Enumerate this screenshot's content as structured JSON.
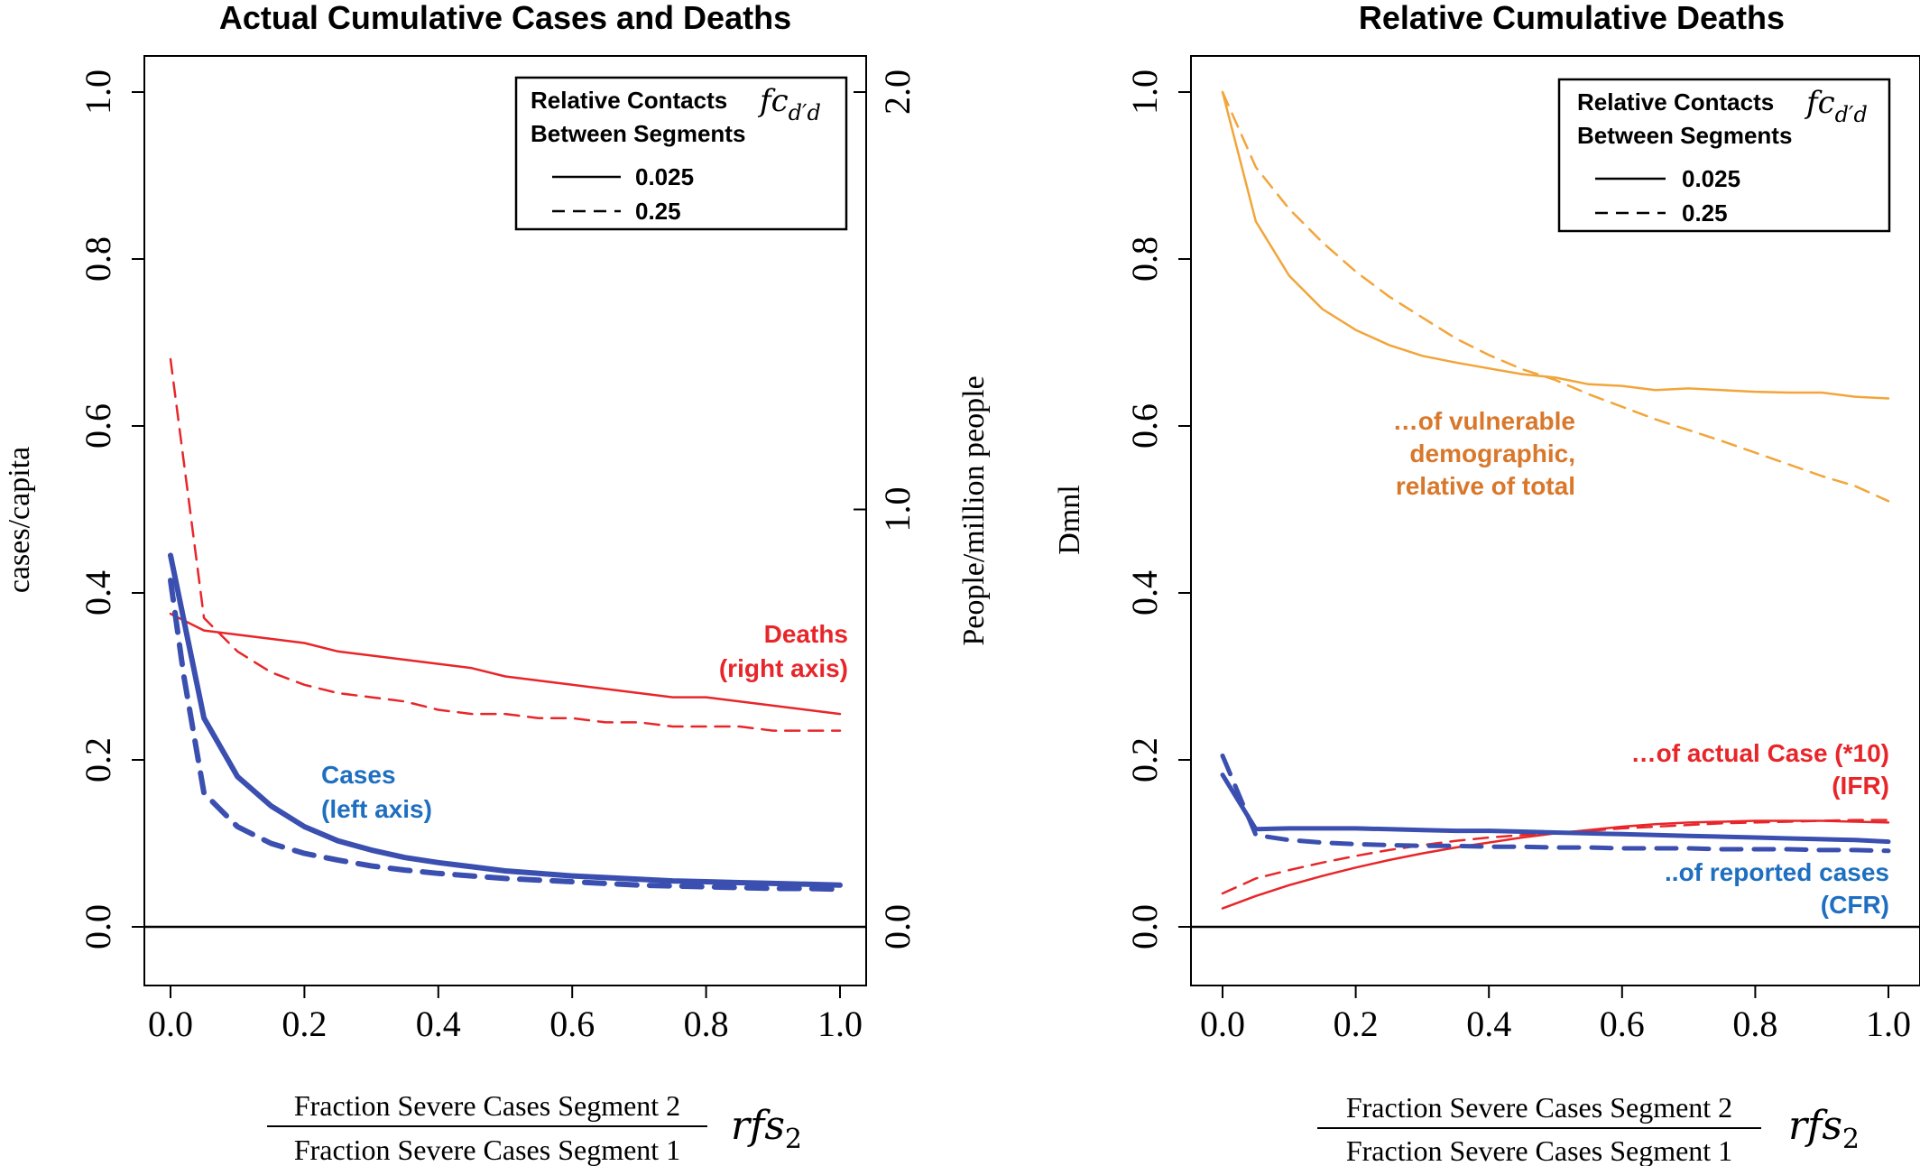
{
  "chart_data": [
    {
      "type": "line",
      "title": "Actual Cumulative Cases and Deaths",
      "ylabel": "cases/capita",
      "y2label": "People/million people",
      "xlabel_numerator": "Fraction Severe Cases Segment 2",
      "xlabel_denominator": "Fraction Severe Cases Segment 1",
      "xlabel_symbol": "rfs",
      "xlabel_symbol_sub": "2",
      "xlim": [
        0,
        1
      ],
      "ylim": [
        0,
        1
      ],
      "y2lim": [
        0,
        2
      ],
      "xticks": [
        "0.0",
        "0.2",
        "0.4",
        "0.6",
        "0.8",
        "1.0"
      ],
      "yticks": [
        "0.0",
        "0.2",
        "0.4",
        "0.6",
        "0.8",
        "1.0"
      ],
      "y2ticks": [
        "0.0",
        "1.0",
        "2.0"
      ],
      "legend": {
        "position": "top-right",
        "title_line1": "Relative Contacts",
        "title_line2": "Between Segments",
        "symbol": "fc",
        "symbol_sub": "d′d",
        "entries": [
          {
            "label": "0.025",
            "style": "solid"
          },
          {
            "label": "0.25",
            "style": "dashed"
          }
        ]
      },
      "annotations": [
        {
          "lines": [
            "Deaths",
            "(right axis)"
          ],
          "color": "#e8262a"
        },
        {
          "lines": [
            "Cases",
            "(left axis)"
          ],
          "color": "#1f6fc0"
        }
      ],
      "series": [
        {
          "group": "Deaths",
          "axis": "right",
          "style": "solid",
          "color": "#e8262a",
          "x": [
            0,
            0.05,
            0.1,
            0.15,
            0.2,
            0.25,
            0.3,
            0.35,
            0.4,
            0.45,
            0.5,
            0.55,
            0.6,
            0.65,
            0.7,
            0.75,
            0.8,
            0.85,
            0.9,
            0.95,
            1.0
          ],
          "y": [
            0.75,
            0.71,
            0.7,
            0.69,
            0.68,
            0.66,
            0.65,
            0.64,
            0.63,
            0.62,
            0.6,
            0.59,
            0.58,
            0.57,
            0.56,
            0.55,
            0.55,
            0.54,
            0.53,
            0.52,
            0.51
          ]
        },
        {
          "group": "Deaths",
          "axis": "right",
          "style": "dashed",
          "color": "#e8262a",
          "x": [
            0,
            0.05,
            0.1,
            0.15,
            0.2,
            0.25,
            0.3,
            0.35,
            0.4,
            0.45,
            0.5,
            0.55,
            0.6,
            0.65,
            0.7,
            0.75,
            0.8,
            0.85,
            0.9,
            0.95,
            1.0
          ],
          "y": [
            1.36,
            0.74,
            0.66,
            0.61,
            0.58,
            0.56,
            0.55,
            0.54,
            0.52,
            0.51,
            0.51,
            0.5,
            0.5,
            0.49,
            0.49,
            0.48,
            0.48,
            0.48,
            0.47,
            0.47,
            0.47
          ]
        },
        {
          "group": "Cases",
          "axis": "left",
          "style": "solid",
          "color": "#3a4faf",
          "x": [
            0,
            0.05,
            0.1,
            0.15,
            0.2,
            0.25,
            0.3,
            0.35,
            0.4,
            0.45,
            0.5,
            0.55,
            0.6,
            0.65,
            0.7,
            0.75,
            0.8,
            0.85,
            0.9,
            0.95,
            1.0
          ],
          "y": [
            0.445,
            0.25,
            0.18,
            0.145,
            0.12,
            0.103,
            0.092,
            0.083,
            0.077,
            0.072,
            0.067,
            0.064,
            0.061,
            0.059,
            0.057,
            0.055,
            0.054,
            0.053,
            0.052,
            0.051,
            0.05
          ]
        },
        {
          "group": "Cases",
          "axis": "left",
          "style": "dashed",
          "color": "#3a4faf",
          "x": [
            0,
            0.02,
            0.05,
            0.1,
            0.15,
            0.2,
            0.25,
            0.3,
            0.35,
            0.4,
            0.45,
            0.5,
            0.55,
            0.6,
            0.65,
            0.7,
            0.75,
            0.8,
            0.85,
            0.9,
            0.95,
            1.0
          ],
          "y": [
            0.415,
            0.3,
            0.16,
            0.12,
            0.1,
            0.088,
            0.08,
            0.073,
            0.068,
            0.064,
            0.061,
            0.058,
            0.056,
            0.054,
            0.052,
            0.05,
            0.049,
            0.048,
            0.047,
            0.046,
            0.046,
            0.045
          ]
        }
      ]
    },
    {
      "type": "line",
      "title": "Relative Cumulative Deaths",
      "ylabel": "Dmnl",
      "xlabel_numerator": "Fraction Severe Cases Segment 2",
      "xlabel_denominator": "Fraction Severe Cases Segment 1",
      "xlabel_symbol": "rfs",
      "xlabel_symbol_sub": "2",
      "xlim": [
        0,
        1
      ],
      "ylim": [
        0,
        1
      ],
      "xticks": [
        "0.0",
        "0.2",
        "0.4",
        "0.6",
        "0.8",
        "1.0"
      ],
      "yticks": [
        "0.0",
        "0.2",
        "0.4",
        "0.6",
        "0.8",
        "1.0"
      ],
      "legend": {
        "position": "top-right",
        "title_line1": "Relative Contacts",
        "title_line2": "Between Segments",
        "symbol": "fc",
        "symbol_sub": "d′d",
        "entries": [
          {
            "label": "0.025",
            "style": "solid"
          },
          {
            "label": "0.25",
            "style": "dashed"
          }
        ]
      },
      "annotations": [
        {
          "lines": [
            "…of vulnerable",
            "demographic,",
            "relative of total"
          ],
          "color": "#d9772a"
        },
        {
          "lines": [
            "…of actual Case (*10)",
            "(IFR)"
          ],
          "color": "#e8262a"
        },
        {
          "lines": [
            "..of reported cases",
            "(CFR)"
          ],
          "color": "#1f6fc0"
        }
      ],
      "series": [
        {
          "group": "vulnerable demographic",
          "style": "solid",
          "color": "#f2a53a",
          "x": [
            0,
            0.05,
            0.1,
            0.15,
            0.2,
            0.25,
            0.3,
            0.35,
            0.4,
            0.45,
            0.5,
            0.55,
            0.6,
            0.65,
            0.7,
            0.75,
            0.8,
            0.85,
            0.9,
            0.95,
            1.0
          ],
          "y": [
            1.0,
            0.845,
            0.78,
            0.74,
            0.715,
            0.697,
            0.684,
            0.676,
            0.669,
            0.662,
            0.658,
            0.65,
            0.648,
            0.643,
            0.645,
            0.643,
            0.641,
            0.64,
            0.64,
            0.635,
            0.633
          ]
        },
        {
          "group": "vulnerable demographic",
          "style": "dashed",
          "color": "#f2a53a",
          "x": [
            0,
            0.05,
            0.1,
            0.15,
            0.2,
            0.25,
            0.3,
            0.35,
            0.4,
            0.45,
            0.5,
            0.55,
            0.6,
            0.65,
            0.7,
            0.75,
            0.8,
            0.85,
            0.9,
            0.95,
            1.0
          ],
          "y": [
            1.0,
            0.91,
            0.86,
            0.82,
            0.785,
            0.755,
            0.73,
            0.705,
            0.685,
            0.668,
            0.655,
            0.638,
            0.623,
            0.608,
            0.595,
            0.582,
            0.568,
            0.554,
            0.54,
            0.528,
            0.51
          ]
        },
        {
          "group": "IFR",
          "style": "solid",
          "color": "#e8262a",
          "x": [
            0,
            0.05,
            0.1,
            0.15,
            0.2,
            0.25,
            0.3,
            0.35,
            0.4,
            0.45,
            0.5,
            0.55,
            0.6,
            0.65,
            0.7,
            0.75,
            0.8,
            0.85,
            0.9,
            0.95,
            1.0
          ],
          "y": [
            0.022,
            0.037,
            0.05,
            0.061,
            0.071,
            0.08,
            0.088,
            0.095,
            0.101,
            0.107,
            0.112,
            0.116,
            0.12,
            0.123,
            0.125,
            0.126,
            0.127,
            0.127,
            0.127,
            0.126,
            0.125
          ]
        },
        {
          "group": "IFR",
          "style": "dashed",
          "color": "#e8262a",
          "x": [
            0,
            0.05,
            0.1,
            0.15,
            0.2,
            0.25,
            0.3,
            0.35,
            0.4,
            0.45,
            0.5,
            0.55,
            0.6,
            0.65,
            0.7,
            0.75,
            0.8,
            0.85,
            0.9,
            0.95,
            1.0
          ],
          "y": [
            0.04,
            0.058,
            0.068,
            0.077,
            0.085,
            0.092,
            0.098,
            0.103,
            0.107,
            0.11,
            0.113,
            0.115,
            0.118,
            0.12,
            0.122,
            0.124,
            0.125,
            0.126,
            0.127,
            0.128,
            0.128
          ]
        },
        {
          "group": "CFR",
          "style": "solid",
          "color": "#3a4faf",
          "x": [
            0,
            0.05,
            0.1,
            0.15,
            0.2,
            0.25,
            0.3,
            0.35,
            0.4,
            0.45,
            0.5,
            0.55,
            0.6,
            0.65,
            0.7,
            0.75,
            0.8,
            0.85,
            0.9,
            0.95,
            1.0
          ],
          "y": [
            0.182,
            0.117,
            0.118,
            0.118,
            0.118,
            0.117,
            0.116,
            0.115,
            0.115,
            0.114,
            0.113,
            0.112,
            0.111,
            0.11,
            0.109,
            0.108,
            0.107,
            0.106,
            0.105,
            0.104,
            0.102
          ]
        },
        {
          "group": "CFR",
          "style": "dashed",
          "color": "#3a4faf",
          "x": [
            0,
            0.05,
            0.1,
            0.15,
            0.2,
            0.25,
            0.3,
            0.35,
            0.4,
            0.45,
            0.5,
            0.55,
            0.6,
            0.65,
            0.7,
            0.75,
            0.8,
            0.85,
            0.9,
            0.95,
            1.0
          ],
          "y": [
            0.205,
            0.11,
            0.104,
            0.101,
            0.099,
            0.098,
            0.097,
            0.097,
            0.096,
            0.096,
            0.095,
            0.095,
            0.094,
            0.094,
            0.094,
            0.093,
            0.093,
            0.093,
            0.092,
            0.092,
            0.091
          ]
        }
      ]
    }
  ]
}
